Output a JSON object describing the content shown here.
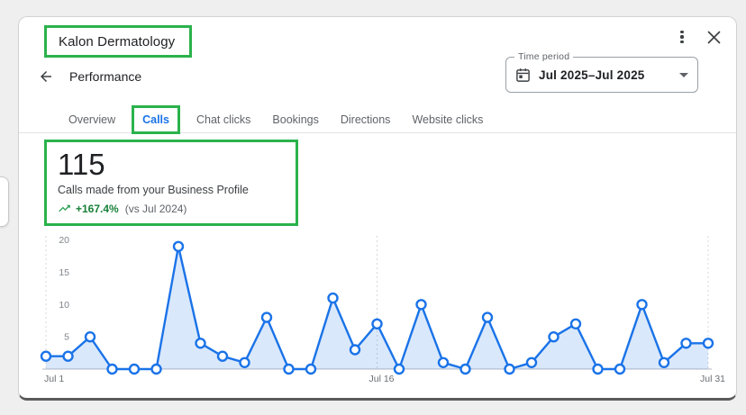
{
  "header": {
    "business_name": "Kalon Dermatology",
    "page_title": "Performance"
  },
  "window_controls": {
    "more_options_icon": "kebab-menu-icon",
    "close_icon": "close-x-icon"
  },
  "time_period": {
    "label": "Time period",
    "value": "Jul 2025–Jul 2025",
    "icon": "calendar-icon"
  },
  "tabs": [
    {
      "label": "Overview",
      "active": false
    },
    {
      "label": "Calls",
      "active": true
    },
    {
      "label": "Chat clicks",
      "active": false
    },
    {
      "label": "Bookings",
      "active": false
    },
    {
      "label": "Directions",
      "active": false
    },
    {
      "label": "Website clicks",
      "active": false
    }
  ],
  "stats": {
    "value": "115",
    "description": "Calls made from your Business Profile",
    "change": "+167.4%",
    "comparison": "(vs Jul 2024)",
    "trend_icon": "trending-up-icon"
  },
  "annotation": {
    "highlight_color": "#2bb24c"
  },
  "colors": {
    "line_blue": "#1a73e8",
    "fill_blue": "#1a73e8",
    "trend_green": "#188038",
    "axis_gray": "#80868b",
    "baseline_gray": "#dadce0"
  },
  "chart_data": {
    "type": "area",
    "title": "Calls made from your Business Profile",
    "categories": [
      "Jul 1",
      "Jul 2",
      "Jul 3",
      "Jul 4",
      "Jul 5",
      "Jul 6",
      "Jul 7",
      "Jul 8",
      "Jul 9",
      "Jul 10",
      "Jul 11",
      "Jul 12",
      "Jul 13",
      "Jul 14",
      "Jul 15",
      "Jul 16",
      "Jul 17",
      "Jul 18",
      "Jul 19",
      "Jul 20",
      "Jul 21",
      "Jul 22",
      "Jul 23",
      "Jul 24",
      "Jul 25",
      "Jul 26",
      "Jul 27",
      "Jul 28",
      "Jul 29",
      "Jul 30",
      "Jul 31"
    ],
    "values": [
      2,
      2,
      5,
      0,
      0,
      0,
      19,
      4,
      2,
      1,
      8,
      0,
      0,
      11,
      3,
      7,
      0,
      10,
      1,
      0,
      8,
      0,
      1,
      5,
      7,
      0,
      0,
      10,
      1,
      4,
      4
    ],
    "total": 115,
    "ylim": [
      0,
      20
    ],
    "yticks": [
      5,
      10,
      15,
      20
    ],
    "x_gridlines": [
      {
        "index": 0,
        "label": "Jul 1",
        "anchor": "start"
      },
      {
        "index": 15,
        "label": "Jul 16",
        "anchor": "middle"
      },
      {
        "index": 30,
        "label": "Jul 31",
        "anchor": "middle"
      }
    ],
    "grid": "vertical-dotted",
    "legend": "none"
  }
}
